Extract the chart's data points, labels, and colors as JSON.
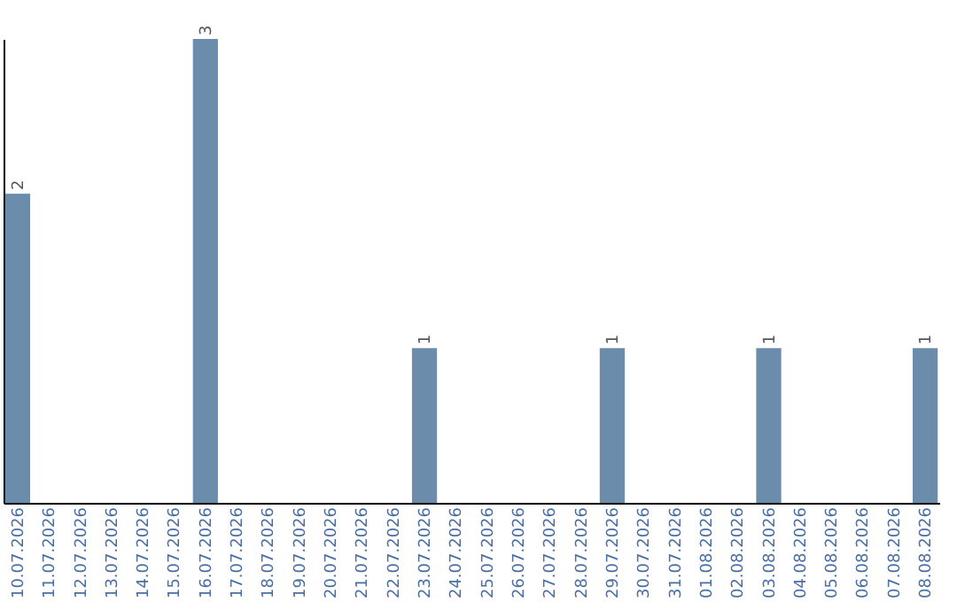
{
  "chart_data": {
    "type": "bar",
    "categories": [
      "10.07.2026",
      "11.07.2026",
      "12.07.2026",
      "13.07.2026",
      "14.07.2026",
      "15.07.2026",
      "16.07.2026",
      "17.07.2026",
      "18.07.2026",
      "19.07.2026",
      "20.07.2026",
      "21.07.2026",
      "22.07.2026",
      "23.07.2026",
      "24.07.2026",
      "25.07.2026",
      "26.07.2026",
      "27.07.2026",
      "28.07.2026",
      "29.07.2026",
      "30.07.2026",
      "31.07.2026",
      "01.08.2026",
      "02.08.2026",
      "03.08.2026",
      "04.08.2026",
      "05.08.2026",
      "06.08.2026",
      "07.08.2026",
      "08.08.2026"
    ],
    "values": [
      2,
      0,
      0,
      0,
      0,
      0,
      3,
      0,
      0,
      0,
      0,
      0,
      0,
      1,
      0,
      0,
      0,
      0,
      0,
      1,
      0,
      0,
      0,
      0,
      1,
      0,
      0,
      0,
      0,
      1
    ],
    "color": "#6b8cab",
    "value_labels": [
      "2",
      null,
      null,
      null,
      null,
      null,
      "3",
      null,
      null,
      null,
      null,
      null,
      null,
      "1",
      null,
      null,
      null,
      null,
      null,
      "1",
      null,
      null,
      null,
      null,
      "1",
      null,
      null,
      null,
      null,
      "1"
    ],
    "tick_labels": "x",
    "grid": false
  }
}
